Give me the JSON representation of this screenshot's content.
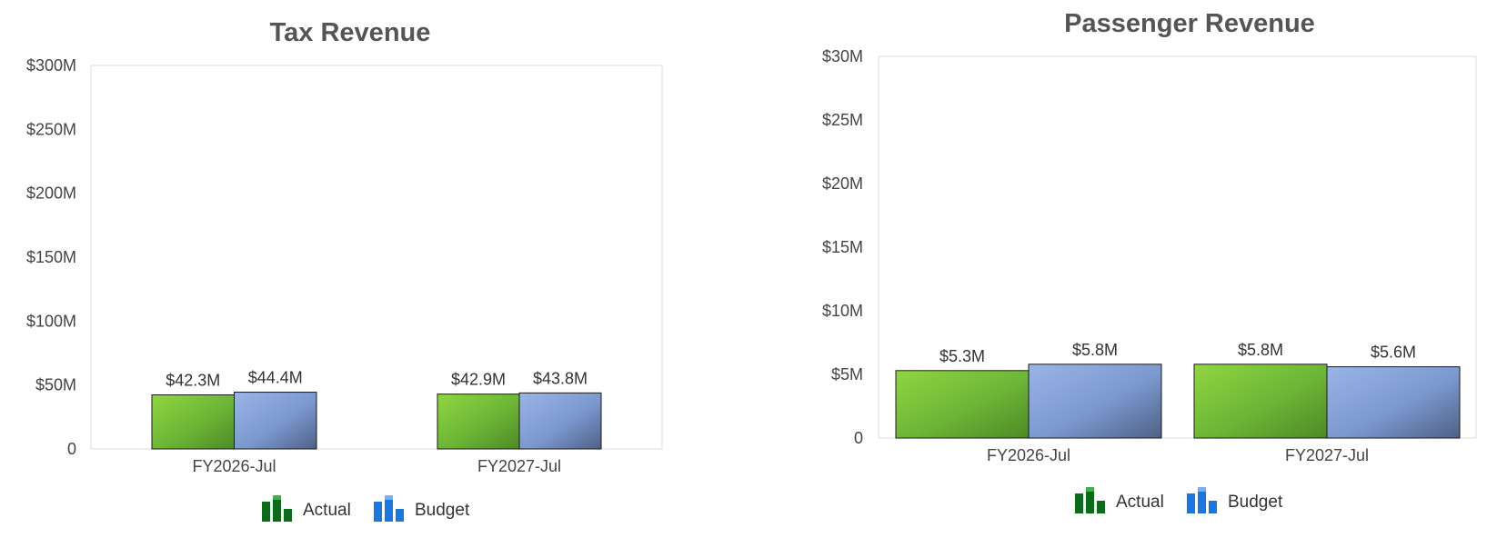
{
  "chart_data": [
    {
      "type": "bar",
      "title": "Tax Revenue",
      "categories": [
        "FY2026-Jul",
        "FY2027-Jul"
      ],
      "series": [
        {
          "name": "Actual",
          "values": [
            42.3,
            42.9
          ],
          "labels": [
            "$42.3M",
            "$42.9M"
          ]
        },
        {
          "name": "Budget",
          "values": [
            44.4,
            43.8
          ],
          "labels": [
            "$44.4M",
            "$43.8M"
          ]
        }
      ],
      "ylim": [
        0,
        300
      ],
      "yticks": [
        {
          "value": 0,
          "label": "0"
        },
        {
          "value": 50,
          "label": "$50M"
        },
        {
          "value": 100,
          "label": "$100M"
        },
        {
          "value": 150,
          "label": "$150M"
        },
        {
          "value": 200,
          "label": "$200M"
        },
        {
          "value": 250,
          "label": "$250M"
        },
        {
          "value": 300,
          "label": "$300M"
        }
      ],
      "grid": false,
      "legend_position": "bottom"
    },
    {
      "type": "bar",
      "title": "Passenger Revenue",
      "categories": [
        "FY2026-Jul",
        "FY2027-Jul"
      ],
      "series": [
        {
          "name": "Actual",
          "values": [
            5.3,
            5.8
          ],
          "labels": [
            "$5.3M",
            "$5.8M"
          ]
        },
        {
          "name": "Budget",
          "values": [
            5.8,
            5.6
          ],
          "labels": [
            "$5.8M",
            "$5.6M"
          ]
        }
      ],
      "ylim": [
        0,
        30
      ],
      "yticks": [
        {
          "value": 0,
          "label": "0"
        },
        {
          "value": 5,
          "label": "$5M"
        },
        {
          "value": 10,
          "label": "$10M"
        },
        {
          "value": 15,
          "label": "$15M"
        },
        {
          "value": 20,
          "label": "$20M"
        },
        {
          "value": 25,
          "label": "$25M"
        },
        {
          "value": 30,
          "label": "$30M"
        }
      ],
      "grid": false,
      "legend_position": "bottom"
    }
  ],
  "colors": {
    "actual": "#5e9e2a",
    "budget": "#7b98cf",
    "legend_actual": "#0b6b1a",
    "legend_budget": "#1877e0"
  },
  "legend_icons": [
    "bar-chart-green-icon",
    "bar-chart-blue-icon"
  ]
}
